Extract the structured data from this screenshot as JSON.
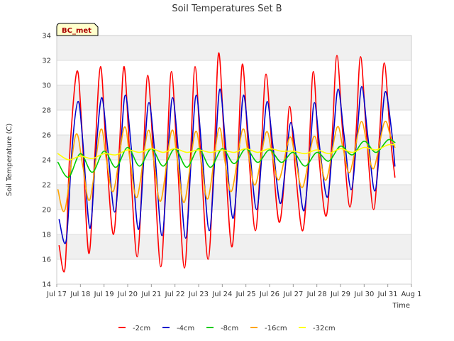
{
  "chart_data": {
    "type": "line",
    "title": "Soil Temperatures Set B",
    "xlabel": "Time",
    "ylabel": "Soil Temperature (C)",
    "ylim": [
      14,
      34
    ],
    "yticks": [
      14,
      16,
      18,
      20,
      22,
      24,
      26,
      28,
      30,
      32,
      34
    ],
    "xlim": [
      17,
      32
    ],
    "xtick_labels": [
      "Jul 17",
      "Jul 18",
      "Jul 19",
      "Jul 20",
      "Jul 21",
      "Jul 22",
      "Jul 23",
      "Jul 24",
      "Jul 25",
      "Jul 26",
      "Jul 27",
      "Jul 28",
      "Jul 29",
      "Jul 30",
      "Jul 31",
      "Aug 1"
    ],
    "grid": "horizontal bands",
    "legend_position": "bottom",
    "badge": "BC_met",
    "x_unit": "day of July (fractional)",
    "series": [
      {
        "name": "-2cm",
        "color": "#ff0000",
        "x": [
          17.1,
          17.35,
          17.55,
          17.85,
          18.05,
          18.35,
          18.6,
          18.85,
          19.1,
          19.4,
          19.65,
          19.85,
          20.1,
          20.4,
          20.65,
          20.85,
          21.1,
          21.4,
          21.65,
          21.85,
          22.1,
          22.4,
          22.65,
          22.85,
          23.1,
          23.4,
          23.65,
          23.85,
          24.1,
          24.4,
          24.65,
          24.85,
          25.1,
          25.4,
          25.65,
          25.85,
          26.1,
          26.4,
          26.65,
          26.85,
          27.1,
          27.4,
          27.65,
          27.85,
          28.1,
          28.4,
          28.65,
          28.85,
          29.1,
          29.4,
          29.65,
          29.85,
          30.1,
          30.4,
          30.65,
          30.85,
          31.1,
          31.3
        ],
        "y": [
          17.1,
          15.3,
          24.5,
          31.1,
          27.0,
          16.5,
          24.0,
          31.5,
          24.5,
          18.0,
          25.0,
          31.5,
          24.0,
          16.2,
          24.0,
          30.8,
          24.0,
          15.4,
          24.0,
          31.1,
          24.0,
          15.3,
          24.0,
          31.5,
          24.0,
          16.0,
          24.0,
          32.6,
          25.0,
          17.0,
          24.0,
          31.7,
          25.0,
          18.3,
          25.0,
          30.9,
          25.0,
          19.0,
          23.0,
          28.3,
          23.0,
          18.3,
          24.0,
          31.1,
          24.0,
          19.5,
          26.0,
          32.4,
          26.0,
          20.2,
          26.0,
          32.3,
          26.0,
          20.0,
          26.0,
          31.8,
          26.0,
          22.6
        ]
      },
      {
        "name": "-4cm",
        "color": "#0000cc",
        "x": [
          17.1,
          17.4,
          17.65,
          17.9,
          18.1,
          18.4,
          18.65,
          18.9,
          19.15,
          19.45,
          19.7,
          19.9,
          20.15,
          20.45,
          20.7,
          20.9,
          21.15,
          21.45,
          21.7,
          21.9,
          22.15,
          22.45,
          22.7,
          22.9,
          23.15,
          23.45,
          23.7,
          23.9,
          24.15,
          24.45,
          24.7,
          24.9,
          25.15,
          25.45,
          25.7,
          25.9,
          26.15,
          26.45,
          26.7,
          26.9,
          27.15,
          27.45,
          27.7,
          27.9,
          28.15,
          28.45,
          28.7,
          28.9,
          29.15,
          29.45,
          29.7,
          29.9,
          30.15,
          30.45,
          30.7,
          30.9,
          31.15,
          31.3
        ],
        "y": [
          19.2,
          17.5,
          25.0,
          28.7,
          25.5,
          18.5,
          24.5,
          29.0,
          25.0,
          19.8,
          25.0,
          29.2,
          25.0,
          18.4,
          24.5,
          28.6,
          24.5,
          17.9,
          24.5,
          29.0,
          24.5,
          17.7,
          24.5,
          29.2,
          24.5,
          18.3,
          24.5,
          29.7,
          25.0,
          19.3,
          24.5,
          29.2,
          25.0,
          20.0,
          25.0,
          28.7,
          25.0,
          20.5,
          24.0,
          27.0,
          24.0,
          19.9,
          24.5,
          28.6,
          24.5,
          21.0,
          26.0,
          29.7,
          26.0,
          21.6,
          26.0,
          29.9,
          26.0,
          21.5,
          26.0,
          29.5,
          26.5,
          23.5
        ]
      },
      {
        "name": "-8cm",
        "color": "#00cc00",
        "x": [
          17.05,
          17.5,
          18.0,
          18.5,
          19.0,
          19.5,
          20.0,
          20.5,
          21.0,
          21.5,
          22.0,
          22.5,
          23.0,
          23.5,
          24.0,
          24.5,
          25.0,
          25.5,
          26.0,
          26.5,
          27.0,
          27.5,
          28.0,
          28.5,
          29.0,
          29.5,
          30.0,
          30.5,
          31.0,
          31.3
        ],
        "y": [
          23.8,
          22.6,
          24.5,
          23.0,
          24.7,
          23.4,
          25.0,
          23.5,
          24.9,
          23.5,
          24.9,
          23.4,
          24.9,
          23.4,
          24.9,
          23.7,
          24.9,
          23.8,
          24.8,
          23.8,
          24.6,
          23.5,
          24.6,
          23.9,
          25.1,
          24.4,
          25.5,
          24.6,
          25.6,
          25.4
        ]
      },
      {
        "name": "-16cm",
        "color": "#ffa500",
        "x": [
          17.05,
          17.35,
          17.8,
          18.1,
          18.4,
          18.85,
          19.1,
          19.4,
          19.85,
          20.1,
          20.4,
          20.85,
          21.1,
          21.4,
          21.85,
          22.1,
          22.4,
          22.85,
          23.1,
          23.4,
          23.85,
          24.1,
          24.4,
          24.85,
          25.1,
          25.4,
          25.85,
          26.1,
          26.4,
          26.85,
          27.1,
          27.4,
          27.85,
          28.1,
          28.4,
          28.85,
          29.1,
          29.4,
          29.85,
          30.1,
          30.4,
          30.85,
          31.1,
          31.3
        ],
        "y": [
          21.6,
          20.0,
          26.0,
          23.5,
          20.8,
          26.4,
          24.0,
          21.5,
          26.6,
          24.0,
          21.0,
          26.3,
          24.0,
          20.7,
          26.3,
          24.0,
          20.6,
          26.2,
          24.0,
          20.9,
          26.5,
          24.0,
          21.5,
          26.4,
          24.5,
          22.0,
          26.2,
          24.5,
          22.4,
          25.8,
          24.0,
          21.8,
          25.8,
          24.5,
          22.4,
          26.6,
          25.0,
          23.0,
          27.0,
          25.5,
          23.3,
          27.0,
          26.0,
          25.0
        ]
      },
      {
        "name": "-32cm",
        "color": "#ffff00",
        "x": [
          17.05,
          17.5,
          18.0,
          18.5,
          19.0,
          19.5,
          20.0,
          20.5,
          21.0,
          21.5,
          22.0,
          22.5,
          23.0,
          23.5,
          24.0,
          24.5,
          25.0,
          25.5,
          26.0,
          26.5,
          27.0,
          27.5,
          28.0,
          28.5,
          29.0,
          29.5,
          30.0,
          30.5,
          31.0,
          31.3
        ],
        "y": [
          24.5,
          24.0,
          24.3,
          24.1,
          24.5,
          24.4,
          24.8,
          24.6,
          24.9,
          24.6,
          24.9,
          24.6,
          24.8,
          24.6,
          24.8,
          24.6,
          24.9,
          24.6,
          24.9,
          24.7,
          24.7,
          24.5,
          24.8,
          24.5,
          24.9,
          24.6,
          25.0,
          24.8,
          25.2,
          25.2
        ]
      }
    ]
  }
}
